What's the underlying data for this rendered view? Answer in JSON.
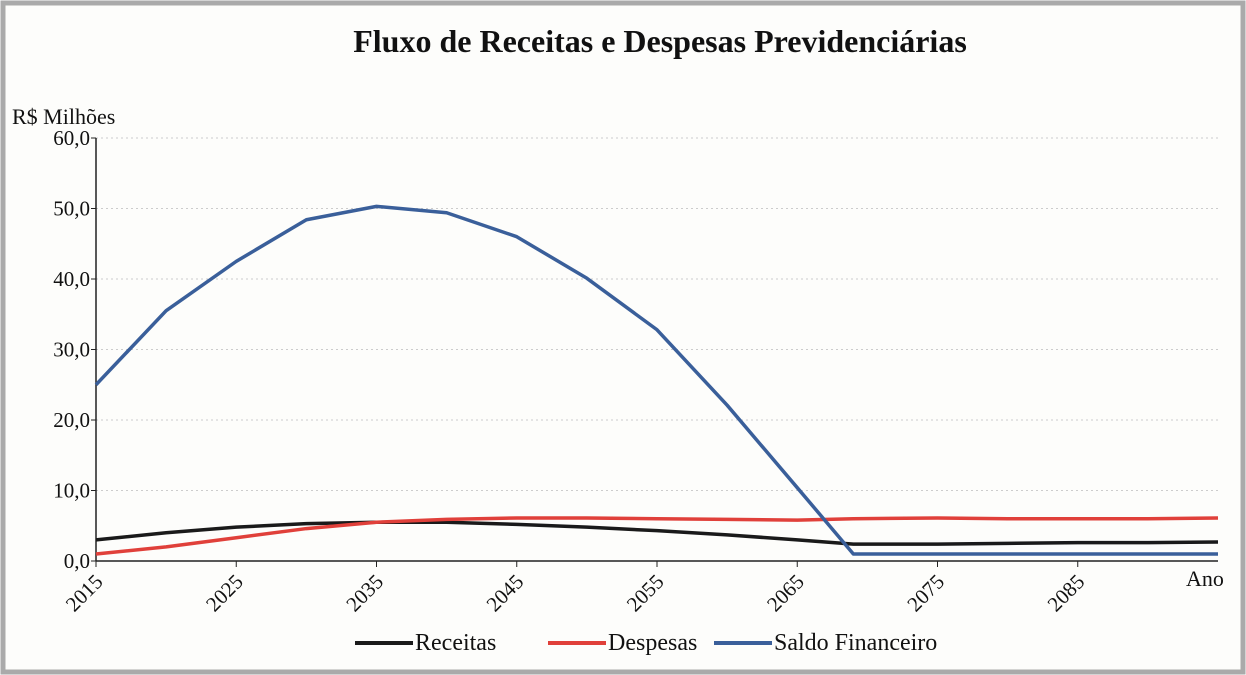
{
  "chart_data": {
    "type": "line",
    "title": "Fluxo de Receitas e Despesas Previdenciárias",
    "y_label": "R$ Milhões",
    "x_label": "Ano",
    "x": [
      2015,
      2020,
      2025,
      2030,
      2035,
      2040,
      2045,
      2050,
      2055,
      2060,
      2065,
      2069,
      2075,
      2080,
      2085,
      2090,
      2095
    ],
    "series": [
      {
        "name": "Receitas",
        "color": "#1a1a1a",
        "values": [
          3.0,
          4.0,
          4.8,
          5.3,
          5.5,
          5.5,
          5.2,
          4.8,
          4.3,
          3.7,
          3.0,
          2.4,
          2.4,
          2.5,
          2.6,
          2.6,
          2.7
        ]
      },
      {
        "name": "Despesas",
        "color": "#e0403a",
        "values": [
          1.0,
          2.0,
          3.3,
          4.6,
          5.5,
          5.9,
          6.1,
          6.1,
          6.0,
          5.9,
          5.8,
          6.0,
          6.1,
          6.0,
          6.0,
          6.0,
          6.1
        ]
      },
      {
        "name": "Saldo Financeiro",
        "color": "#3a5f9a",
        "values": [
          25.0,
          35.5,
          42.5,
          48.4,
          50.3,
          49.4,
          46.0,
          40.1,
          32.8,
          22.1,
          10.4,
          1.0,
          1.0,
          1.0,
          1.0,
          1.0,
          1.0
        ]
      }
    ],
    "xlim": [
      2015,
      2095
    ],
    "xticks": [
      2015,
      2025,
      2035,
      2045,
      2055,
      2065,
      2075,
      2085
    ],
    "ylim": [
      0,
      60
    ],
    "yticks": [
      {
        "value": 0,
        "label": "0,0"
      },
      {
        "value": 10,
        "label": "10,0"
      },
      {
        "value": 20,
        "label": "20,0"
      },
      {
        "value": 30,
        "label": "30,0"
      },
      {
        "value": 40,
        "label": "40,0"
      },
      {
        "value": 50,
        "label": "50,0"
      },
      {
        "value": 60,
        "label": "60,0"
      }
    ],
    "grid": true,
    "legend": "bottom"
  }
}
